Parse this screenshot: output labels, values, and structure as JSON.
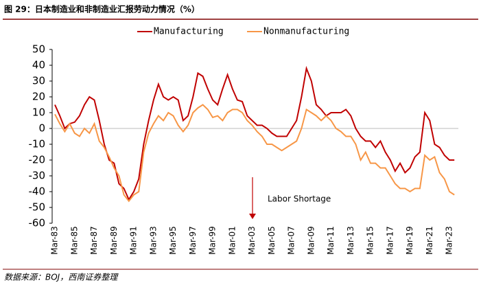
{
  "chart_data": {
    "type": "line",
    "title": "图 29：日本制造业和非制造业汇报劳动力情况（%）",
    "source": "数据来源：BOJ，西南证券整理",
    "annotation": "Labor Shortage",
    "categories": [
      "Mar-83",
      null,
      null,
      null,
      "Mar-85",
      null,
      null,
      null,
      "Mar-87",
      null,
      null,
      null,
      "Mar-89",
      null,
      null,
      null,
      "Mar-91",
      null,
      null,
      null,
      "Mar-93",
      null,
      null,
      null,
      "Mar-95",
      null,
      null,
      null,
      "Mar-97",
      null,
      null,
      null,
      "Mar-99",
      null,
      null,
      null,
      "Mar-01",
      null,
      null,
      null,
      "Mar-03",
      null,
      null,
      null,
      "Mar-05",
      null,
      null,
      null,
      "Mar-07",
      null,
      null,
      null,
      "Mar-09",
      null,
      null,
      null,
      "Mar-11",
      null,
      null,
      null,
      "Mar-13",
      null,
      null,
      null,
      "Mar-15",
      null,
      null,
      null,
      "Mar-17",
      null,
      null,
      null,
      "Mar-19",
      null,
      null,
      null,
      "Mar-21",
      null,
      null,
      null,
      "Mar-23",
      null
    ],
    "series": [
      {
        "name": "Manufacturing",
        "color": "#c00000",
        "values": [
          15,
          8,
          0,
          3,
          4,
          8,
          15,
          20,
          18,
          5,
          -10,
          -20,
          -22,
          -35,
          -38,
          -45,
          -40,
          -32,
          -10,
          5,
          18,
          28,
          20,
          18,
          20,
          18,
          5,
          8,
          20,
          35,
          33,
          25,
          18,
          15,
          25,
          34,
          25,
          18,
          17,
          8,
          5,
          2,
          2,
          0,
          -3,
          -5,
          -5,
          -5,
          0,
          5,
          20,
          38,
          30,
          15,
          12,
          8,
          10,
          10,
          10,
          12,
          8,
          0,
          -5,
          -8,
          -8,
          -12,
          -8,
          -15,
          -20,
          -27,
          -22,
          -28,
          -25,
          -18,
          -15,
          10,
          5,
          -10,
          -12,
          -17,
          -20,
          -20
        ]
      },
      {
        "name": "Nonmanufacturing",
        "color": "#f79646",
        "values": [
          9,
          3,
          -2,
          3,
          -3,
          -5,
          0,
          -3,
          3,
          -8,
          -12,
          -18,
          -25,
          -30,
          -42,
          -46,
          -42,
          -40,
          -15,
          -3,
          3,
          8,
          5,
          10,
          8,
          2,
          -2,
          2,
          10,
          13,
          15,
          12,
          7,
          8,
          5,
          10,
          12,
          12,
          10,
          5,
          2,
          -2,
          -5,
          -10,
          -10,
          -12,
          -14,
          -12,
          -10,
          -8,
          0,
          12,
          10,
          8,
          5,
          8,
          5,
          0,
          -2,
          -5,
          -5,
          -10,
          -20,
          -15,
          -22,
          -22,
          -25,
          -25,
          -30,
          -35,
          -38,
          -38,
          -40,
          -38,
          -38,
          -17,
          -20,
          -18,
          -28,
          -32,
          -40,
          -42
        ]
      }
    ],
    "ylim": [
      -60,
      50
    ],
    "yticks": [
      -60,
      -50,
      -40,
      -30,
      -20,
      -10,
      0,
      10,
      20,
      30,
      40,
      50
    ],
    "legend": "top"
  }
}
